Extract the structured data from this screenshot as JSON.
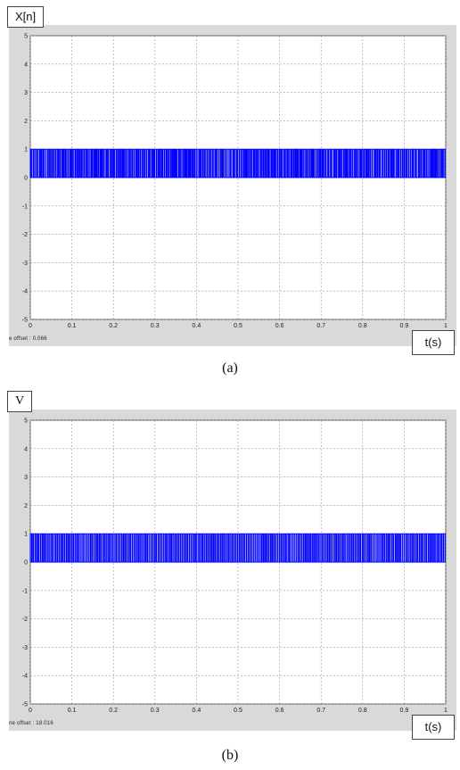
{
  "chart_data": [
    {
      "type": "bar",
      "caption": "(a)",
      "ylabel": "X[n]",
      "xlabel": "t(s)",
      "offset_text": "e offset : 0.066",
      "xlim": [
        0,
        1
      ],
      "ylim": [
        -5,
        5
      ],
      "x_ticks": [
        "0",
        "0.1",
        "0.2",
        "0.3",
        "0.4",
        "0.5",
        "0.6",
        "0.7",
        "0.8",
        "0.9",
        "1"
      ],
      "y_ticks": [
        "5",
        "4",
        "3",
        "2",
        "1",
        "0",
        "-1",
        "-2",
        "-3",
        "-4",
        "-5"
      ],
      "grid": true,
      "series_color": "#0000ff",
      "signal": {
        "kind": "binary random pulse train",
        "low": 0,
        "high": 1,
        "t_start": 0,
        "t_end": 1,
        "pulses": 260,
        "seed": 7
      }
    },
    {
      "type": "bar",
      "caption": "(b)",
      "ylabel": "V",
      "xlabel": "t(s)",
      "offset_text": "ne offset : 18.016",
      "xlim": [
        0,
        1
      ],
      "ylim": [
        -5,
        5
      ],
      "x_ticks": [
        "0",
        "0.1",
        "0.2",
        "0.3",
        "0.4",
        "0.5",
        "0.6",
        "0.7",
        "0.8",
        "0.9",
        "1"
      ],
      "y_ticks": [
        "5",
        "4",
        "3",
        "2",
        "1",
        "0",
        "-1",
        "-2",
        "-3",
        "-4",
        "-5"
      ],
      "grid": true,
      "series_color": "#0000ff",
      "signal": {
        "kind": "binary pulse train",
        "low": 0,
        "high": 1,
        "t_start": 0,
        "t_end": 1,
        "pulses": 240,
        "seed": 19
      }
    }
  ]
}
